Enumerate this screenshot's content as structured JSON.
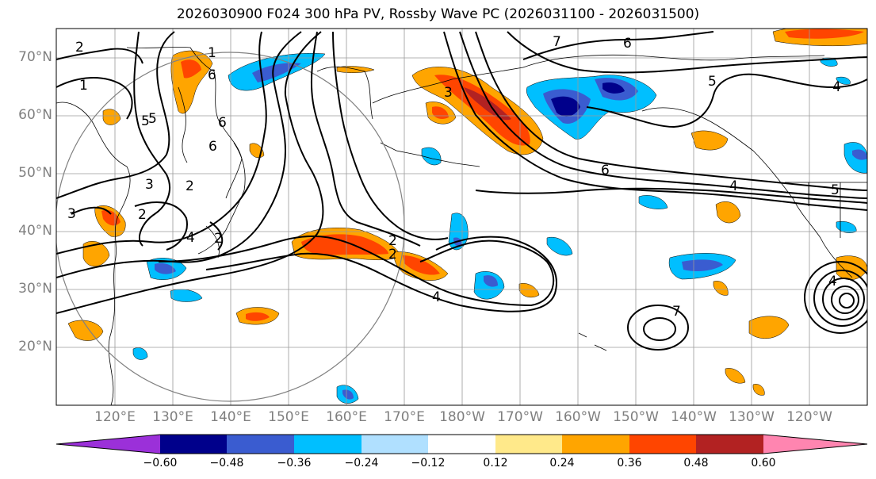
{
  "title": "2026030900 F024 300 hPa PV, Rossby Wave PC (2026031100 - 2026031500)",
  "lat_labels": [
    "70°N",
    "60°N",
    "50°N",
    "40°N",
    "30°N",
    "20°N"
  ],
  "lon_labels": [
    "120°E",
    "130°E",
    "140°E",
    "150°E",
    "160°E",
    "170°E",
    "180°W",
    "170°W",
    "160°W",
    "150°W",
    "140°W",
    "130°W",
    "120°W"
  ],
  "contour_labels": [
    "2",
    "1",
    "1",
    "6",
    "6",
    "5",
    "6",
    "7",
    "6",
    "5",
    "4",
    "5",
    "6",
    "4",
    "5",
    "3",
    "3",
    "2",
    "2",
    "2",
    "3",
    "4",
    "2",
    "2",
    "4",
    "4",
    "7"
  ],
  "colorbar": {
    "tick_labels": [
      "−0.60",
      "−0.48",
      "−0.36",
      "−0.24",
      "−0.12",
      "0.12",
      "0.24",
      "0.36",
      "0.48",
      "0.60"
    ],
    "colors": [
      "#9b30d9",
      "#00008b",
      "#3a5cd0",
      "#00bfff",
      "#b0e0ff",
      "#ffffff",
      "#ffe98a",
      "#ffa500",
      "#ff4500",
      "#b22222",
      "#ff85b0"
    ]
  },
  "colors": {
    "neg_strong": "#00008b",
    "neg_mid": "#3a5cd0",
    "neg_light": "#00bfff",
    "neg_pale": "#b0e0ff",
    "pos_pale": "#ffe98a",
    "pos_light": "#ffa500",
    "pos_mid": "#ff4500",
    "pos_strong": "#b22222"
  }
}
